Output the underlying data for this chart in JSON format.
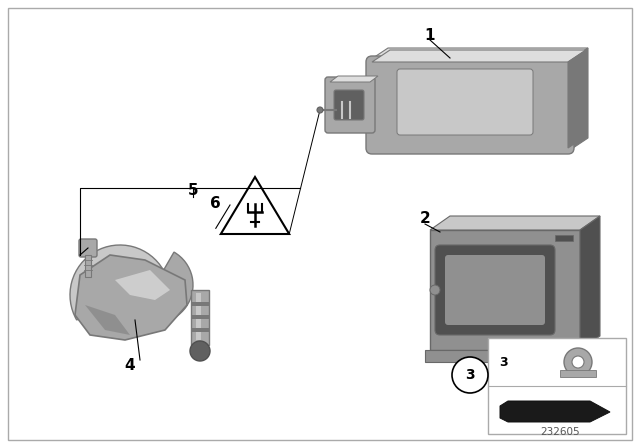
{
  "bg_color": "#ffffff",
  "border_color": "#bbbbbb",
  "line_color": "#000000",
  "part_color": "#a8a8a8",
  "part_color_dark": "#787878",
  "part_color_light": "#c8c8c8",
  "part_color_lighter": "#dedede",
  "part_color_darker": "#606060",
  "part2_color": "#909090",
  "part2_dark": "#686868",
  "part2_darker": "#505050",
  "catalog_number": "232605"
}
